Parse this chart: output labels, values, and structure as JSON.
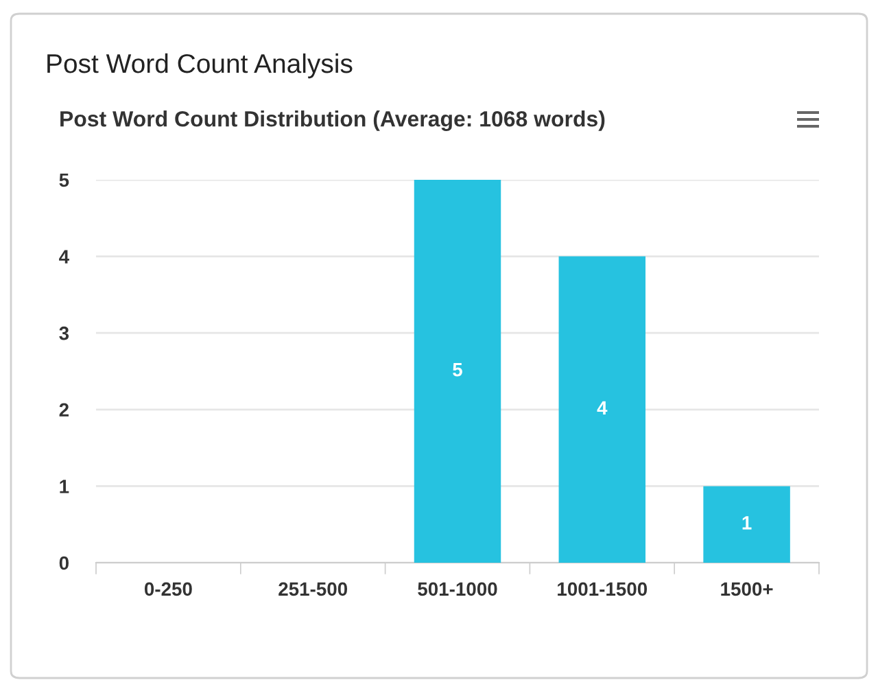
{
  "chart_data": {
    "type": "bar",
    "title": "Post Word Count Analysis",
    "subtitle": "Post Word Count Distribution (Average: 1068 words)",
    "categories": [
      "0-250",
      "251-500",
      "501-1000",
      "1001-1500",
      "1500+"
    ],
    "values": [
      0,
      0,
      5,
      4,
      1
    ],
    "color": "#26c2e0",
    "value_labels": [
      null,
      null,
      "5",
      "4",
      "1"
    ],
    "ylim": [
      0,
      5
    ],
    "yticks": [
      0,
      1,
      2,
      3,
      4,
      5
    ],
    "grid": "y",
    "legend": false
  }
}
